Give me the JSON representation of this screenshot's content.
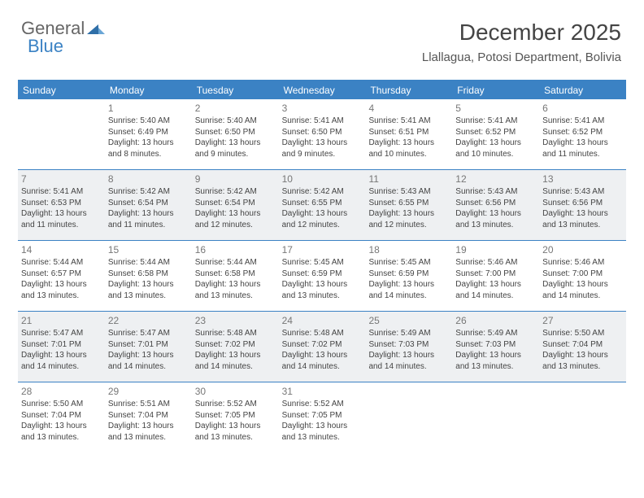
{
  "logo": {
    "part1": "General",
    "part2": "Blue"
  },
  "header": {
    "month_title": "December 2025",
    "location": "Llallagua, Potosi Department, Bolivia"
  },
  "colors": {
    "accent": "#3b82c4",
    "alt_row_bg": "#eef0f2",
    "text": "#444444",
    "header_text": "#555555"
  },
  "day_names": [
    "Sunday",
    "Monday",
    "Tuesday",
    "Wednesday",
    "Thursday",
    "Friday",
    "Saturday"
  ],
  "weeks": [
    {
      "alt": false,
      "cells": [
        {
          "blank": true
        },
        {
          "num": "1",
          "sunrise": "Sunrise: 5:40 AM",
          "sunset": "Sunset: 6:49 PM",
          "day1": "Daylight: 13 hours",
          "day2": "and 8 minutes."
        },
        {
          "num": "2",
          "sunrise": "Sunrise: 5:40 AM",
          "sunset": "Sunset: 6:50 PM",
          "day1": "Daylight: 13 hours",
          "day2": "and 9 minutes."
        },
        {
          "num": "3",
          "sunrise": "Sunrise: 5:41 AM",
          "sunset": "Sunset: 6:50 PM",
          "day1": "Daylight: 13 hours",
          "day2": "and 9 minutes."
        },
        {
          "num": "4",
          "sunrise": "Sunrise: 5:41 AM",
          "sunset": "Sunset: 6:51 PM",
          "day1": "Daylight: 13 hours",
          "day2": "and 10 minutes."
        },
        {
          "num": "5",
          "sunrise": "Sunrise: 5:41 AM",
          "sunset": "Sunset: 6:52 PM",
          "day1": "Daylight: 13 hours",
          "day2": "and 10 minutes."
        },
        {
          "num": "6",
          "sunrise": "Sunrise: 5:41 AM",
          "sunset": "Sunset: 6:52 PM",
          "day1": "Daylight: 13 hours",
          "day2": "and 11 minutes."
        }
      ]
    },
    {
      "alt": true,
      "cells": [
        {
          "num": "7",
          "sunrise": "Sunrise: 5:41 AM",
          "sunset": "Sunset: 6:53 PM",
          "day1": "Daylight: 13 hours",
          "day2": "and 11 minutes."
        },
        {
          "num": "8",
          "sunrise": "Sunrise: 5:42 AM",
          "sunset": "Sunset: 6:54 PM",
          "day1": "Daylight: 13 hours",
          "day2": "and 11 minutes."
        },
        {
          "num": "9",
          "sunrise": "Sunrise: 5:42 AM",
          "sunset": "Sunset: 6:54 PM",
          "day1": "Daylight: 13 hours",
          "day2": "and 12 minutes."
        },
        {
          "num": "10",
          "sunrise": "Sunrise: 5:42 AM",
          "sunset": "Sunset: 6:55 PM",
          "day1": "Daylight: 13 hours",
          "day2": "and 12 minutes."
        },
        {
          "num": "11",
          "sunrise": "Sunrise: 5:43 AM",
          "sunset": "Sunset: 6:55 PM",
          "day1": "Daylight: 13 hours",
          "day2": "and 12 minutes."
        },
        {
          "num": "12",
          "sunrise": "Sunrise: 5:43 AM",
          "sunset": "Sunset: 6:56 PM",
          "day1": "Daylight: 13 hours",
          "day2": "and 13 minutes."
        },
        {
          "num": "13",
          "sunrise": "Sunrise: 5:43 AM",
          "sunset": "Sunset: 6:56 PM",
          "day1": "Daylight: 13 hours",
          "day2": "and 13 minutes."
        }
      ]
    },
    {
      "alt": false,
      "cells": [
        {
          "num": "14",
          "sunrise": "Sunrise: 5:44 AM",
          "sunset": "Sunset: 6:57 PM",
          "day1": "Daylight: 13 hours",
          "day2": "and 13 minutes."
        },
        {
          "num": "15",
          "sunrise": "Sunrise: 5:44 AM",
          "sunset": "Sunset: 6:58 PM",
          "day1": "Daylight: 13 hours",
          "day2": "and 13 minutes."
        },
        {
          "num": "16",
          "sunrise": "Sunrise: 5:44 AM",
          "sunset": "Sunset: 6:58 PM",
          "day1": "Daylight: 13 hours",
          "day2": "and 13 minutes."
        },
        {
          "num": "17",
          "sunrise": "Sunrise: 5:45 AM",
          "sunset": "Sunset: 6:59 PM",
          "day1": "Daylight: 13 hours",
          "day2": "and 13 minutes."
        },
        {
          "num": "18",
          "sunrise": "Sunrise: 5:45 AM",
          "sunset": "Sunset: 6:59 PM",
          "day1": "Daylight: 13 hours",
          "day2": "and 14 minutes."
        },
        {
          "num": "19",
          "sunrise": "Sunrise: 5:46 AM",
          "sunset": "Sunset: 7:00 PM",
          "day1": "Daylight: 13 hours",
          "day2": "and 14 minutes."
        },
        {
          "num": "20",
          "sunrise": "Sunrise: 5:46 AM",
          "sunset": "Sunset: 7:00 PM",
          "day1": "Daylight: 13 hours",
          "day2": "and 14 minutes."
        }
      ]
    },
    {
      "alt": true,
      "cells": [
        {
          "num": "21",
          "sunrise": "Sunrise: 5:47 AM",
          "sunset": "Sunset: 7:01 PM",
          "day1": "Daylight: 13 hours",
          "day2": "and 14 minutes."
        },
        {
          "num": "22",
          "sunrise": "Sunrise: 5:47 AM",
          "sunset": "Sunset: 7:01 PM",
          "day1": "Daylight: 13 hours",
          "day2": "and 14 minutes."
        },
        {
          "num": "23",
          "sunrise": "Sunrise: 5:48 AM",
          "sunset": "Sunset: 7:02 PM",
          "day1": "Daylight: 13 hours",
          "day2": "and 14 minutes."
        },
        {
          "num": "24",
          "sunrise": "Sunrise: 5:48 AM",
          "sunset": "Sunset: 7:02 PM",
          "day1": "Daylight: 13 hours",
          "day2": "and 14 minutes."
        },
        {
          "num": "25",
          "sunrise": "Sunrise: 5:49 AM",
          "sunset": "Sunset: 7:03 PM",
          "day1": "Daylight: 13 hours",
          "day2": "and 14 minutes."
        },
        {
          "num": "26",
          "sunrise": "Sunrise: 5:49 AM",
          "sunset": "Sunset: 7:03 PM",
          "day1": "Daylight: 13 hours",
          "day2": "and 13 minutes."
        },
        {
          "num": "27",
          "sunrise": "Sunrise: 5:50 AM",
          "sunset": "Sunset: 7:04 PM",
          "day1": "Daylight: 13 hours",
          "day2": "and 13 minutes."
        }
      ]
    },
    {
      "alt": false,
      "cells": [
        {
          "num": "28",
          "sunrise": "Sunrise: 5:50 AM",
          "sunset": "Sunset: 7:04 PM",
          "day1": "Daylight: 13 hours",
          "day2": "and 13 minutes."
        },
        {
          "num": "29",
          "sunrise": "Sunrise: 5:51 AM",
          "sunset": "Sunset: 7:04 PM",
          "day1": "Daylight: 13 hours",
          "day2": "and 13 minutes."
        },
        {
          "num": "30",
          "sunrise": "Sunrise: 5:52 AM",
          "sunset": "Sunset: 7:05 PM",
          "day1": "Daylight: 13 hours",
          "day2": "and 13 minutes."
        },
        {
          "num": "31",
          "sunrise": "Sunrise: 5:52 AM",
          "sunset": "Sunset: 7:05 PM",
          "day1": "Daylight: 13 hours",
          "day2": "and 13 minutes."
        },
        {
          "blank": true
        },
        {
          "blank": true
        },
        {
          "blank": true
        }
      ]
    }
  ]
}
